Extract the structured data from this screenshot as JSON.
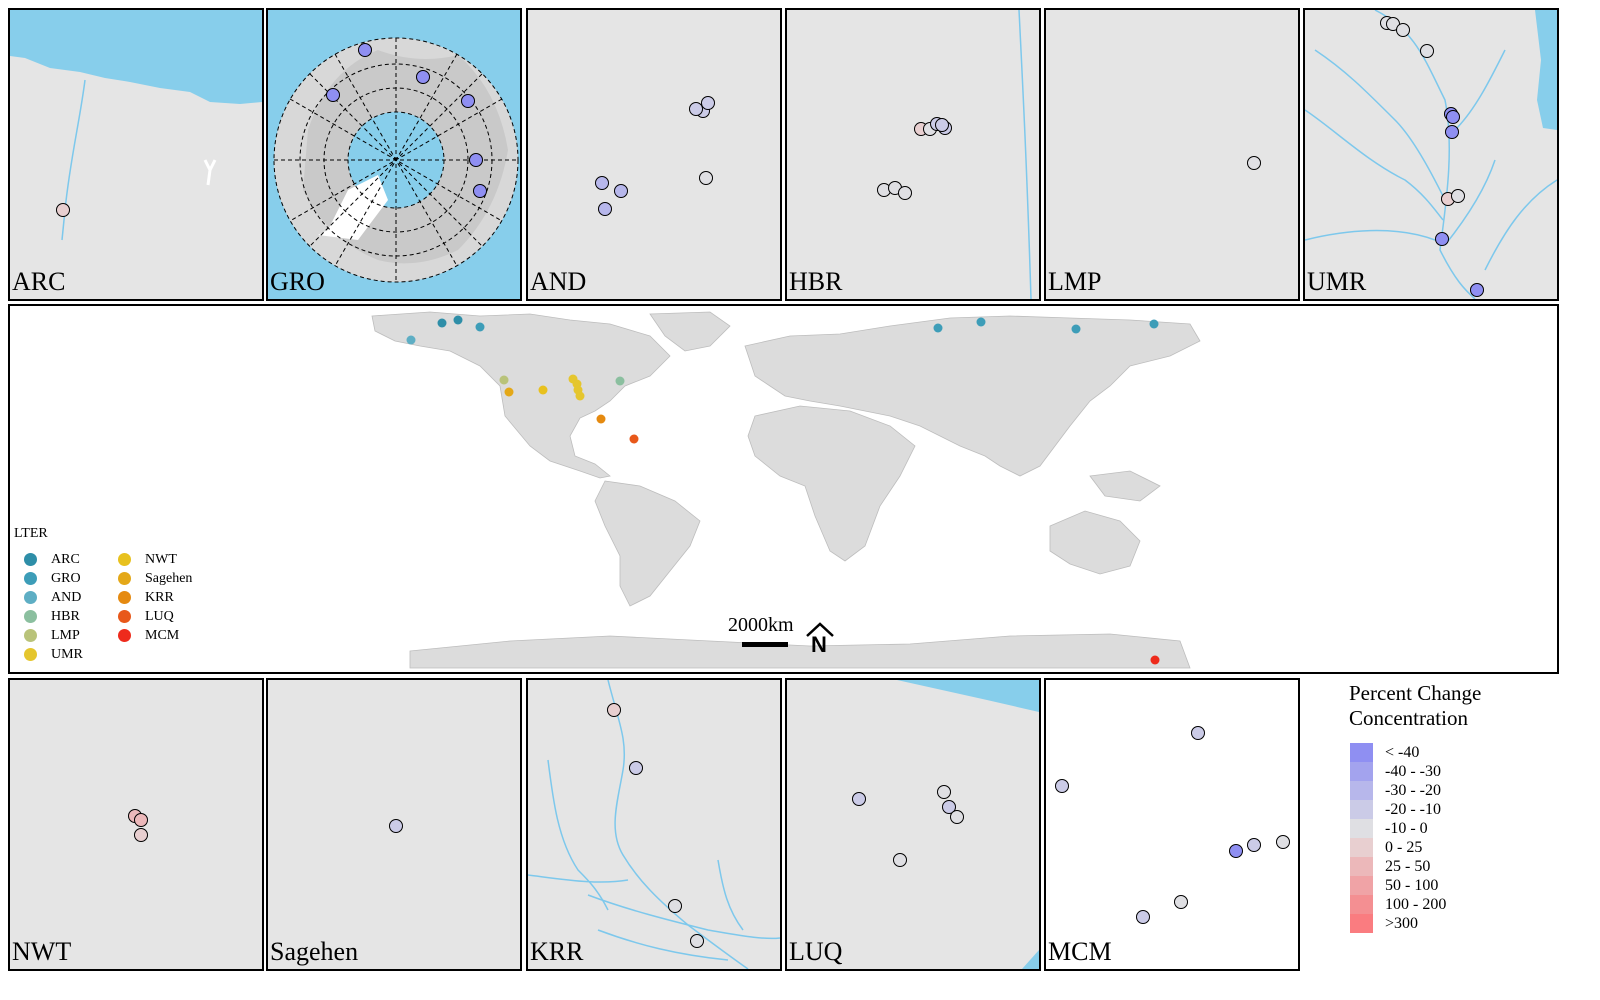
{
  "colors": {
    "land": "#e5e5e5",
    "water": "#87ceeb",
    "river": "#7dc8ec",
    "world_land": "#dcdcdc",
    "point_stroke": "#000000"
  },
  "percent_change_legend": {
    "title_line1": "Percent Change",
    "title_line2": "Concentration",
    "classes": [
      {
        "label": "< -40",
        "color": "#8f8ff2"
      },
      {
        "label": "-40 - -30",
        "color": "#a3a3ee"
      },
      {
        "label": "-30 - -20",
        "color": "#b7b7eb"
      },
      {
        "label": "-20 - -10",
        "color": "#cbcbe7"
      },
      {
        "label": "-10 - 0",
        "color": "#dfdfe3"
      },
      {
        "label": "0 - 25",
        "color": "#e8cfd0"
      },
      {
        "label": "25 - 50",
        "color": "#ecb8ba"
      },
      {
        "label": "50 - 100",
        "color": "#f0a3a6"
      },
      {
        "label": "100 - 200",
        "color": "#f48f92"
      },
      {
        "label": ">300",
        "color": "#fa7c80"
      }
    ]
  },
  "lter_legend": {
    "title": "LTER",
    "items": [
      {
        "label": "ARC",
        "color": "#2e8ea8"
      },
      {
        "label": "GRO",
        "color": "#3d9db8"
      },
      {
        "label": "AND",
        "color": "#5eaec4"
      },
      {
        "label": "HBR",
        "color": "#8bbf9f"
      },
      {
        "label": "LMP",
        "color": "#b9c37a"
      },
      {
        "label": "UMR",
        "color": "#e5c62e"
      },
      {
        "label": "NWT",
        "color": "#e8c11e"
      },
      {
        "label": "Sagehen",
        "color": "#e4a818"
      },
      {
        "label": "KRR",
        "color": "#e58a10"
      },
      {
        "label": "LUQ",
        "color": "#e8581a"
      },
      {
        "label": "MCM",
        "color": "#ee2b1c"
      }
    ]
  },
  "scale_bar": {
    "label": "2000km",
    "north": "N"
  },
  "site_panels": [
    {
      "id": "ARC",
      "label": "ARC",
      "points": [
        {
          "class": "0 - 25"
        }
      ]
    },
    {
      "id": "GRO",
      "label": "GRO",
      "points": [
        {
          "class": "< -40"
        },
        {
          "class": "< -40"
        },
        {
          "class": "< -40"
        },
        {
          "class": "< -40"
        },
        {
          "class": "< -40"
        },
        {
          "class": "< -40"
        }
      ]
    },
    {
      "id": "AND",
      "label": "AND",
      "points": [
        {
          "class": "-20 - -10"
        },
        {
          "class": "-20 - -10"
        },
        {
          "class": "-20 - -10"
        },
        {
          "class": "-30 - -20"
        },
        {
          "class": "-30 - -20"
        },
        {
          "class": "-30 - -20"
        },
        {
          "class": "-10 - 0"
        }
      ]
    },
    {
      "id": "HBR",
      "label": "HBR",
      "points": [
        {
          "class": "-20 - -10"
        },
        {
          "class": "0 - 25"
        },
        {
          "class": "-10 - 0"
        },
        {
          "class": "-20 - -10"
        },
        {
          "class": "-20 - -10"
        },
        {
          "class": "-10 - 0"
        },
        {
          "class": "-10 - 0"
        },
        {
          "class": "-10 - 0"
        }
      ]
    },
    {
      "id": "LMP",
      "label": "LMP",
      "points": [
        {
          "class": "-10 - 0"
        }
      ]
    },
    {
      "id": "UMR",
      "label": "UMR",
      "points": [
        {
          "class": "-10 - 0"
        },
        {
          "class": "-10 - 0"
        },
        {
          "class": "-10 - 0"
        },
        {
          "class": "-10 - 0"
        },
        {
          "class": "< -40"
        },
        {
          "class": "< -40"
        },
        {
          "class": "< -40"
        },
        {
          "class": "0 - 25"
        },
        {
          "class": "-10 - 0"
        },
        {
          "class": "< -40"
        },
        {
          "class": "< -40"
        }
      ]
    },
    {
      "id": "NWT",
      "label": "NWT",
      "points": [
        {
          "class": "25 - 50"
        },
        {
          "class": "25 - 50"
        },
        {
          "class": "0 - 25"
        }
      ]
    },
    {
      "id": "Sagehen",
      "label": "Sagehen",
      "points": [
        {
          "class": "-20 - -10"
        }
      ]
    },
    {
      "id": "KRR",
      "label": "KRR",
      "points": [
        {
          "class": "0 - 25"
        },
        {
          "class": "-20 - -10"
        },
        {
          "class": "-10 - 0"
        },
        {
          "class": "-10 - 0"
        }
      ]
    },
    {
      "id": "LUQ",
      "label": "LUQ",
      "points": [
        {
          "class": "-20 - -10"
        },
        {
          "class": "-10 - 0"
        },
        {
          "class": "-20 - -10"
        },
        {
          "class": "-10 - 0"
        },
        {
          "class": "-10 - 0"
        }
      ]
    },
    {
      "id": "MCM",
      "label": "MCM",
      "points": [
        {
          "class": "-20 - -10"
        },
        {
          "class": "-20 - -10"
        },
        {
          "class": "< -40"
        },
        {
          "class": "-20 - -10"
        },
        {
          "class": "-10 - 0"
        },
        {
          "class": "-10 - 0"
        },
        {
          "class": "-20 - -10"
        }
      ]
    }
  ]
}
